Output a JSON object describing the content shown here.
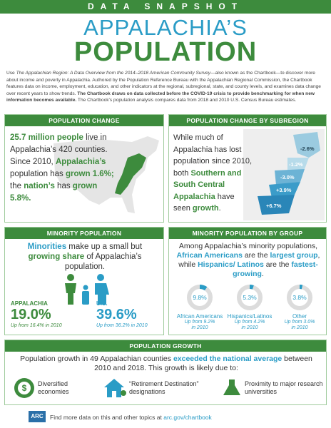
{
  "header": {
    "kicker": "DATA SNAPSHOT",
    "title_line1": "APPALACHIA’S",
    "title_line2": "POPULATION"
  },
  "intro": [
    "Use ",
    "The Appalachian Region: A Data Overview from the 2014–2018 American Community Survey",
    "—also known as the Chartbook—to discover more about income and poverty in Appalachia. Authored by the Population Reference Bureau with the Appalachian Regional Commission, the Chartbook features data on income, employment, education, and other indicators at the regional, subregional, state, and county levels, and examines data change over recent years to show trends. ",
    "The Chartbook draws on data collected before the COVID-19 crisis to provide benchmarking for when new information becomes available.",
    " The Chartbook’s population analysis compares data from 2018 and 2010 U.S. Census Bureau estimates."
  ],
  "population_change": {
    "heading": "POPULATION CHANGE",
    "text": [
      "25.7 million people",
      " live in Appalachia’s 420 counties. Since 2010, ",
      "Appalachia’s",
      " population has ",
      "grown 1.6%;",
      " the ",
      "nation’s",
      " has ",
      "grown 5.8%."
    ]
  },
  "subregion": {
    "heading": "POPULATION CHANGE BY SUBREGION",
    "text": [
      "While much of Appalachia has lost population since 2010, both ",
      "Southern and South Central Appalachia",
      " have seen ",
      "growth",
      "."
    ],
    "map_labels": [
      "-2.6%",
      "-1.2%",
      "-3.0%",
      "+3.9%",
      "+6.7%"
    ]
  },
  "minority": {
    "heading": "MINORITY POPULATION",
    "text": [
      "Minorities",
      " make up a small but ",
      "growing share",
      " of Appalachia’s population."
    ],
    "appalachia": {
      "label": "APPALACHIA",
      "value": "19.0%",
      "note": "Up from 16.4% in 2010"
    },
    "us": {
      "label": "U.S.",
      "value": "39.6%",
      "note": "Up from 36.2% in 2010"
    }
  },
  "minority_group": {
    "heading": "MINORITY POPULATION BY GROUP",
    "text": [
      "Among Appalachia’s minority populations, ",
      "African Americans",
      " are the ",
      "largest group",
      ", while ",
      "Hispanics/ Latinos",
      " are the ",
      "fastest-growing",
      "."
    ],
    "groups": [
      {
        "name": "African Americans",
        "value": 9.8,
        "value_label": "9.8%",
        "note": "Up from 9.2% in 2010"
      },
      {
        "name": "Hispanics/Latinos",
        "value": 5.3,
        "value_label": "5.3%",
        "note": "Up from 4.2% in 2010"
      },
      {
        "name": "Other",
        "value": 3.8,
        "value_label": "3.8%",
        "note": "Up from 3.0% in 2010"
      }
    ]
  },
  "growth": {
    "heading": "POPULATION GROWTH",
    "text": [
      "Population growth in 49 Appalachian counties ",
      "exceeded the national average",
      " between 2010 and 2018. This growth is likely due to:"
    ],
    "items": [
      "Diversified economies",
      "“Retirement Destination” designations",
      "Proximity to major research universities"
    ]
  },
  "footer": {
    "logo": "ARC",
    "text": "Find more data on this and other topics at ",
    "link": "arc.gov/chartbook"
  }
}
